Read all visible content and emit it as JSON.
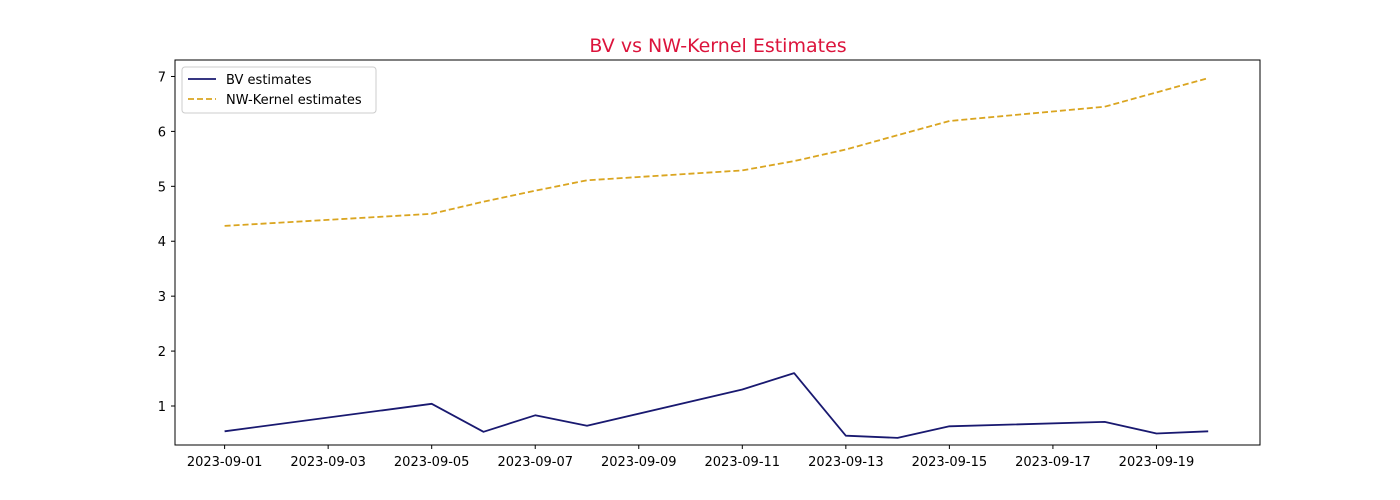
{
  "chart_data": {
    "type": "line",
    "title": "BV vs NW-Kernel Estimates",
    "title_color": "#dc143c",
    "xlabel": "",
    "ylabel": "",
    "x": [
      "2023-09-01",
      "2023-09-05",
      "2023-09-06",
      "2023-09-07",
      "2023-09-08",
      "2023-09-11",
      "2023-09-12",
      "2023-09-13",
      "2023-09-14",
      "2023-09-15",
      "2023-09-18",
      "2023-09-19",
      "2023-09-20"
    ],
    "xlim": [
      "2023-08-31T01:00",
      "2023-09-21T00:00"
    ],
    "ylim": [
      0.29,
      7.3
    ],
    "x_ticks": [
      "2023-09-01",
      "2023-09-03",
      "2023-09-05",
      "2023-09-07",
      "2023-09-09",
      "2023-09-11",
      "2023-09-13",
      "2023-09-15",
      "2023-09-17",
      "2023-09-19"
    ],
    "y_ticks": [
      1,
      2,
      3,
      4,
      5,
      6,
      7
    ],
    "grid": false,
    "legend_position": "top-left",
    "series": [
      {
        "name": "BV estimates",
        "color": "#191970",
        "style": "solid",
        "values": [
          0.54,
          1.04,
          0.53,
          0.83,
          0.64,
          1.3,
          1.6,
          0.46,
          0.42,
          0.63,
          0.71,
          0.5,
          0.54
        ]
      },
      {
        "name": "NW-Kernel estimates",
        "color": "#daa520",
        "style": "dashed",
        "values": [
          4.28,
          4.5,
          4.72,
          4.92,
          5.11,
          5.29,
          5.46,
          5.67,
          5.93,
          6.19,
          6.45,
          6.71,
          6.97
        ]
      }
    ]
  }
}
